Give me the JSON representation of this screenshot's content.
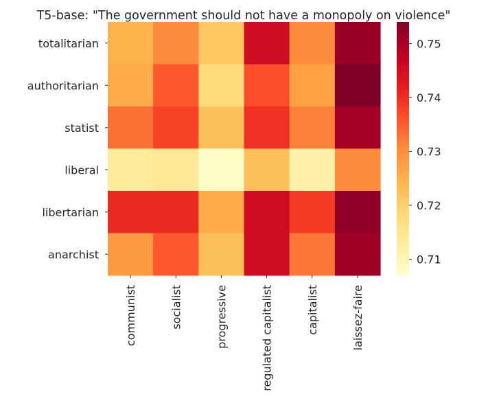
{
  "chart_data": {
    "type": "heatmap",
    "title": "T5-base: \"The government should not have a monopoly on violence\"",
    "x_categories": [
      "communist",
      "socialist",
      "progressive",
      "regulated capitalist",
      "capitalist",
      "laissez-faire"
    ],
    "y_categories": [
      "totalitarian",
      "authoritarian",
      "statist",
      "liberal",
      "libertarian",
      "anarchist"
    ],
    "values": [
      [
        0.7245,
        0.7305,
        0.7215,
        0.7455,
        0.7305,
        0.7515
      ],
      [
        0.7255,
        0.7355,
        0.718,
        0.7365,
        0.7275,
        0.754
      ],
      [
        0.733,
        0.7375,
        0.7225,
        0.7395,
        0.7315,
        0.7505
      ],
      [
        0.713,
        0.714,
        0.7075,
        0.7225,
        0.7115,
        0.7305
      ],
      [
        0.7405,
        0.7405,
        0.7255,
        0.7455,
        0.7385,
        0.7525
      ],
      [
        0.7285,
        0.7355,
        0.7225,
        0.7455,
        0.7325,
        0.751
      ]
    ],
    "colorbar": {
      "vmin": 0.707,
      "vmax": 0.754,
      "ticks": [
        0.71,
        0.72,
        0.73,
        0.74,
        0.75
      ],
      "tick_labels": [
        "0.71",
        "0.72",
        "0.73",
        "0.74",
        "0.75"
      ],
      "colormap": "YlOrRd"
    },
    "grid": false
  }
}
